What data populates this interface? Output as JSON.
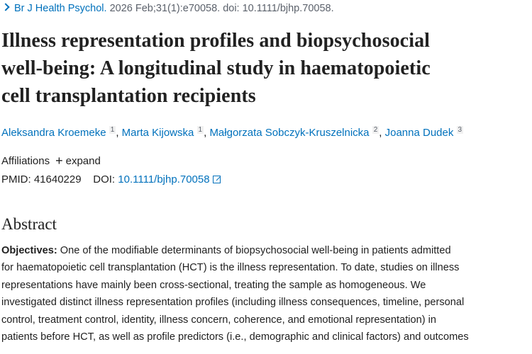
{
  "citation": {
    "journal": "Br J Health Psychol.",
    "details": " 2026 Feb;31(1):e70058. doi: 10.1111/bjhp.70058."
  },
  "title_lines": [
    "Illness representation profiles and biopsychosocial",
    "well-being: A longitudinal study in haematopoietic",
    "cell transplantation recipients"
  ],
  "authors": [
    {
      "name": "Aleksandra Kroemeke",
      "aff": "1"
    },
    {
      "name": "Marta Kijowska",
      "aff": "1"
    },
    {
      "name": "Małgorzata Sobczyk-Kruszelnicka",
      "aff": "2"
    },
    {
      "name": "Joanna Dudek",
      "aff": "3"
    }
  ],
  "affiliations": {
    "label": "Affiliations",
    "expand": "expand"
  },
  "ids": {
    "pmid_label": "PMID:",
    "pmid": "41640229",
    "doi_label": "DOI:",
    "doi": "10.1111/bjhp.70058"
  },
  "abstract": {
    "heading": "Abstract",
    "objectives_label": "Objectives:",
    "lines": [
      " One of the modifiable determinants of biopsychosocial well-being in patients admitted",
      "for haematopoietic cell transplantation (HCT) is the illness representation. To date, studies on illness",
      "representations have mainly been cross-sectional, treating the sample as homogeneous. We",
      "investigated distinct illness representation profiles (including illness consequences, timeline, personal",
      "control, treatment control, identity, illness concern, coherence, and emotional representation) in",
      "patients before HCT, as well as profile predictors (i.e., demographic and clinical factors) and outcomes"
    ]
  }
}
